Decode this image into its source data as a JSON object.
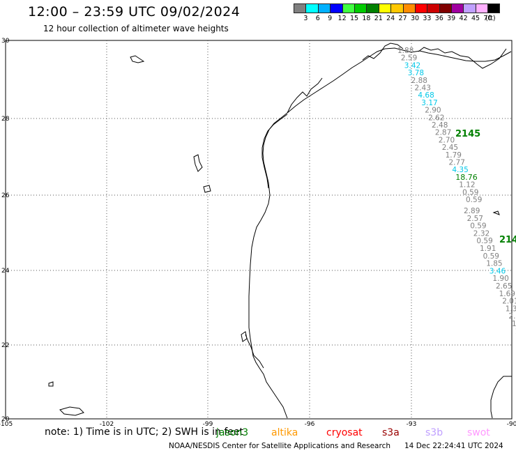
{
  "header": {
    "title": "12:00 – 23:59 UTC 09/02/2024",
    "subtitle": "12 hour collection of altimeter wave heights"
  },
  "legend": {
    "colors": [
      "#808080",
      "#00ffff",
      "#00b0ff",
      "#0000ff",
      "#40ff40",
      "#00cc00",
      "#008000",
      "#ffff00",
      "#ffc800",
      "#ff8c00",
      "#ff0000",
      "#cc0000",
      "#800000",
      "#a000a0",
      "#c0a0ff",
      "#ffb0ff",
      "#000000"
    ],
    "labels": [
      "3",
      "6",
      "9",
      "12",
      "15",
      "18",
      "21",
      "24",
      "27",
      "30",
      "33",
      "36",
      "39",
      "42",
      "45",
      "70",
      "(ft)"
    ]
  },
  "map": {
    "lat_labels": [
      "30",
      "28",
      "26",
      "24",
      "22",
      "20"
    ],
    "lon_labels": [
      "-105",
      "-102",
      "-99",
      "-96",
      "-93",
      "-90"
    ]
  },
  "tracks": {
    "track1": [
      {
        "text": "1.88",
        "color": "#808080"
      },
      {
        "text": "2.59",
        "color": "#808080"
      },
      {
        "text": "3.42",
        "color": "#00c8e8"
      },
      {
        "text": "3.78",
        "color": "#00c8e8"
      },
      {
        "text": "2.88",
        "color": "#808080"
      },
      {
        "text": "2.43",
        "color": "#808080"
      },
      {
        "text": "4.68",
        "color": "#00c8e8"
      },
      {
        "text": "3.17",
        "color": "#00c8e8"
      },
      {
        "text": "2.90",
        "color": "#808080"
      },
      {
        "text": "2.62",
        "color": "#808080"
      },
      {
        "text": "2.48",
        "color": "#808080"
      },
      {
        "text": "2.87",
        "color": "#808080"
      },
      {
        "text": "2.70",
        "color": "#808080"
      },
      {
        "text": "2.45",
        "color": "#808080"
      },
      {
        "text": "1.79",
        "color": "#808080"
      },
      {
        "text": "2.77",
        "color": "#808080"
      },
      {
        "text": "4.35",
        "color": "#00c8e8"
      },
      {
        "text": "18.76",
        "color": "#008000"
      },
      {
        "text": "1.12",
        "color": "#808080"
      },
      {
        "text": "0.59",
        "color": "#808080"
      },
      {
        "text": "0.59",
        "color": "#808080"
      }
    ],
    "track1_time": "2145",
    "track2": [
      {
        "text": "2.89",
        "color": "#808080"
      },
      {
        "text": "2.57",
        "color": "#808080"
      },
      {
        "text": "0.59",
        "color": "#808080"
      },
      {
        "text": "2.32",
        "color": "#808080"
      },
      {
        "text": "0.59",
        "color": "#808080"
      },
      {
        "text": "1.91",
        "color": "#808080"
      },
      {
        "text": "0.59",
        "color": "#808080"
      },
      {
        "text": "1.85",
        "color": "#808080"
      },
      {
        "text": "3.46",
        "color": "#00c8e8"
      },
      {
        "text": "1.90",
        "color": "#808080"
      },
      {
        "text": "2.65",
        "color": "#808080"
      },
      {
        "text": "1.69",
        "color": "#808080"
      },
      {
        "text": "2.01",
        "color": "#808080"
      },
      {
        "text": "1.34",
        "color": "#808080"
      },
      {
        "text": "2.2",
        "color": "#808080"
      },
      {
        "text": "1.",
        "color": "#808080"
      },
      {
        "text": "1",
        "color": "#808080"
      }
    ],
    "track2_time": "214"
  },
  "footer": {
    "note": "note:  1) Time is in UTC;  2) SWH is in feet",
    "satellites": [
      {
        "name": "jason3",
        "color": "#008000"
      },
      {
        "name": "altika",
        "color": "#ff9900"
      },
      {
        "name": "cryosat",
        "color": "#ff0000"
      },
      {
        "name": "s3a",
        "color": "#990000"
      },
      {
        "name": "s3b",
        "color": "#c0a0ff"
      },
      {
        "name": "swot",
        "color": "#ff99ff"
      }
    ],
    "credit": "NOAA/NESDIS Center for Satellite Applications and Research",
    "generated": "14 Dec 22:24:41 UTC 2024"
  }
}
